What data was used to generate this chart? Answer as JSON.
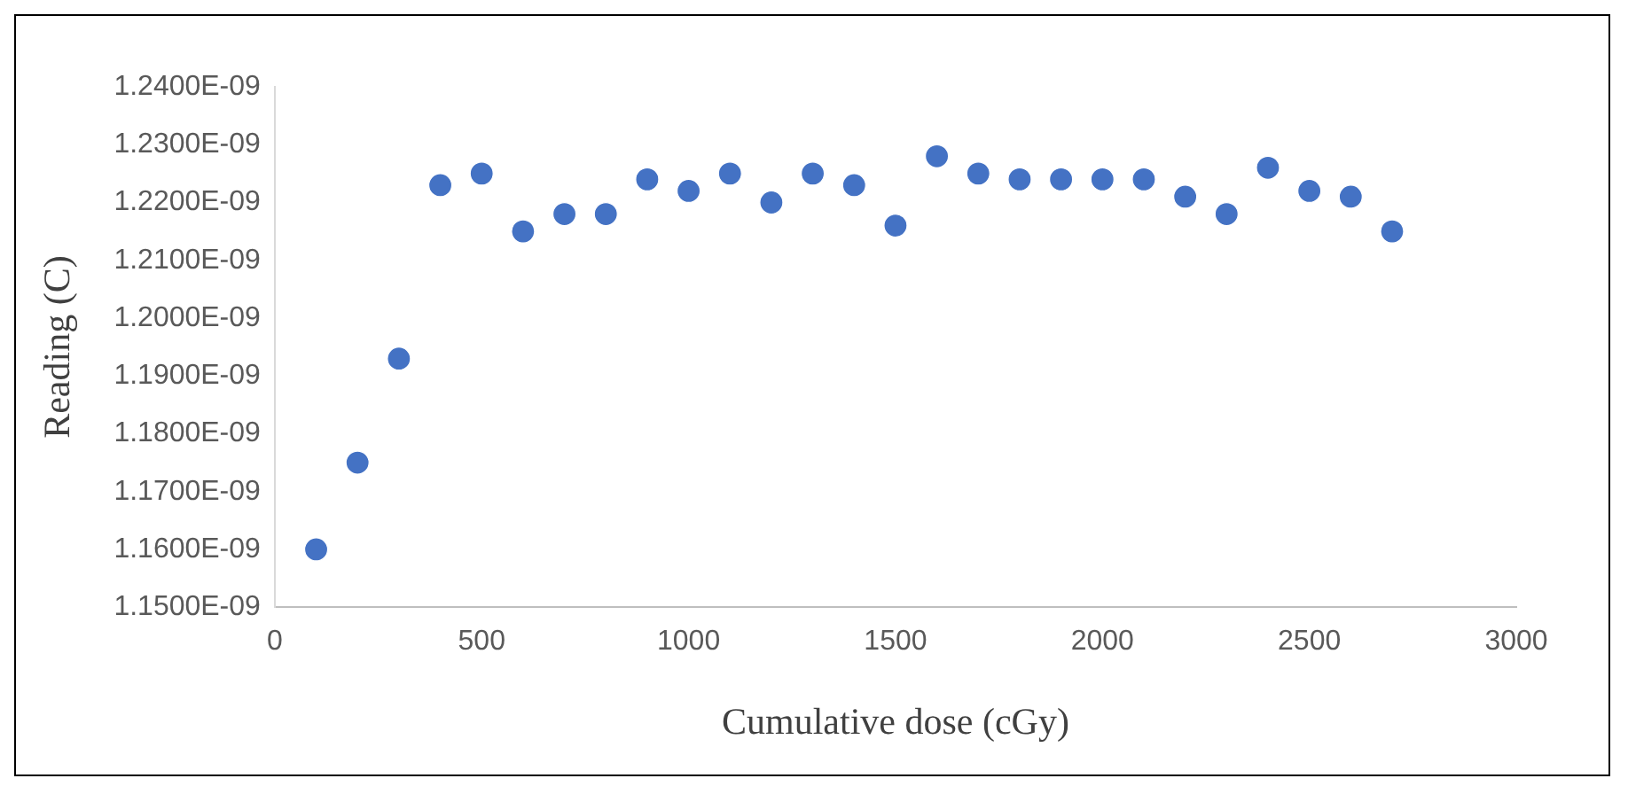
{
  "chart_data": {
    "type": "scatter",
    "xlabel": "Cumulative dose (cGy)",
    "ylabel": "Reading (C)",
    "x": [
      100,
      200,
      300,
      400,
      500,
      600,
      700,
      800,
      900,
      1000,
      1100,
      1200,
      1300,
      1400,
      1500,
      1600,
      1700,
      1800,
      1900,
      2000,
      2100,
      2200,
      2300,
      2400,
      2500,
      2600,
      2700
    ],
    "series": [
      {
        "color": "#4472c4",
        "values": [
          1.16e-09,
          1.175e-09,
          1.193e-09,
          1.223e-09,
          1.225e-09,
          1.215e-09,
          1.218e-09,
          1.218e-09,
          1.224e-09,
          1.222e-09,
          1.225e-09,
          1.22e-09,
          1.225e-09,
          1.223e-09,
          1.216e-09,
          1.228e-09,
          1.225e-09,
          1.224e-09,
          1.224e-09,
          1.224e-09,
          1.224e-09,
          1.221e-09,
          1.218e-09,
          1.226e-09,
          1.222e-09,
          1.221e-09,
          1.215e-09
        ]
      }
    ],
    "xlim": [
      0,
      3000
    ],
    "xticks": [
      0,
      500,
      1000,
      1500,
      2000,
      2500,
      3000
    ],
    "ylim": [
      1.15e-09,
      1.24e-09
    ],
    "yticks": [
      {
        "value": 1.15e-09,
        "label": "1.1500E-09"
      },
      {
        "value": 1.16e-09,
        "label": "1.1600E-09"
      },
      {
        "value": 1.17e-09,
        "label": "1.1700E-09"
      },
      {
        "value": 1.18e-09,
        "label": "1.1800E-09"
      },
      {
        "value": 1.19e-09,
        "label": "1.1900E-09"
      },
      {
        "value": 1.2e-09,
        "label": "1.2000E-09"
      },
      {
        "value": 1.21e-09,
        "label": "1.2100E-09"
      },
      {
        "value": 1.22e-09,
        "label": "1.2200E-09"
      },
      {
        "value": 1.23e-09,
        "label": "1.2300E-09"
      },
      {
        "value": 1.24e-09,
        "label": "1.2400E-09"
      }
    ],
    "grid": false,
    "legend": false,
    "marker": "circle"
  }
}
